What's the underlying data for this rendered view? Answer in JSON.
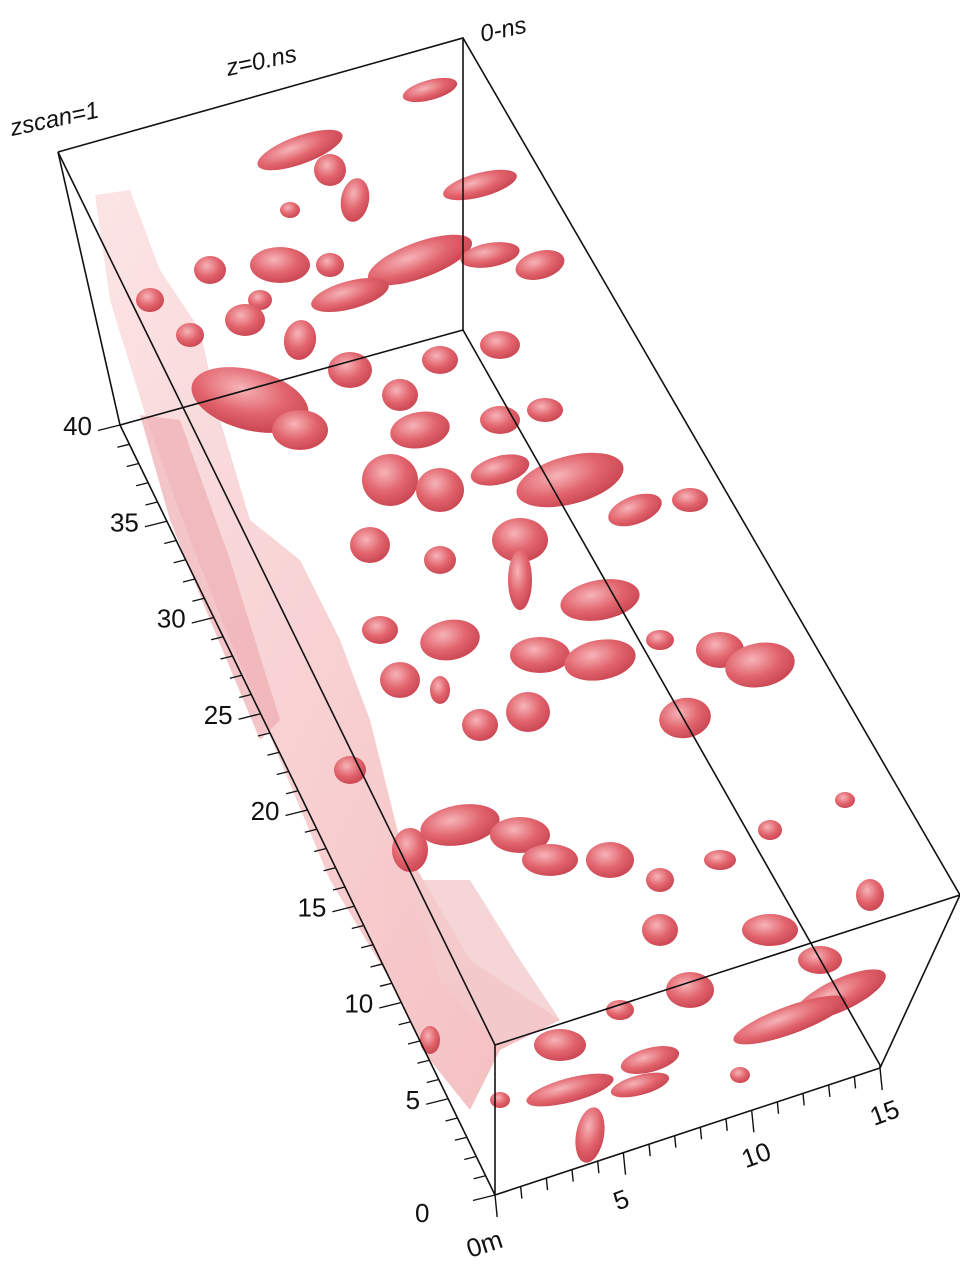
{
  "labels": {
    "zscan": "zscan=1",
    "z_top": "z=0.ns",
    "z_corner": "0-ns",
    "origin": "0",
    "x_start": "0m"
  },
  "y_axis": {
    "ticks": [
      "5",
      "10",
      "15",
      "20",
      "25",
      "30",
      "35",
      "40"
    ]
  },
  "x_axis": {
    "ticks": [
      "5",
      "10",
      "15"
    ]
  },
  "colors": {
    "blob": "#e0606a",
    "blob_light": "#f4b0b4",
    "edge": "#111111"
  }
}
